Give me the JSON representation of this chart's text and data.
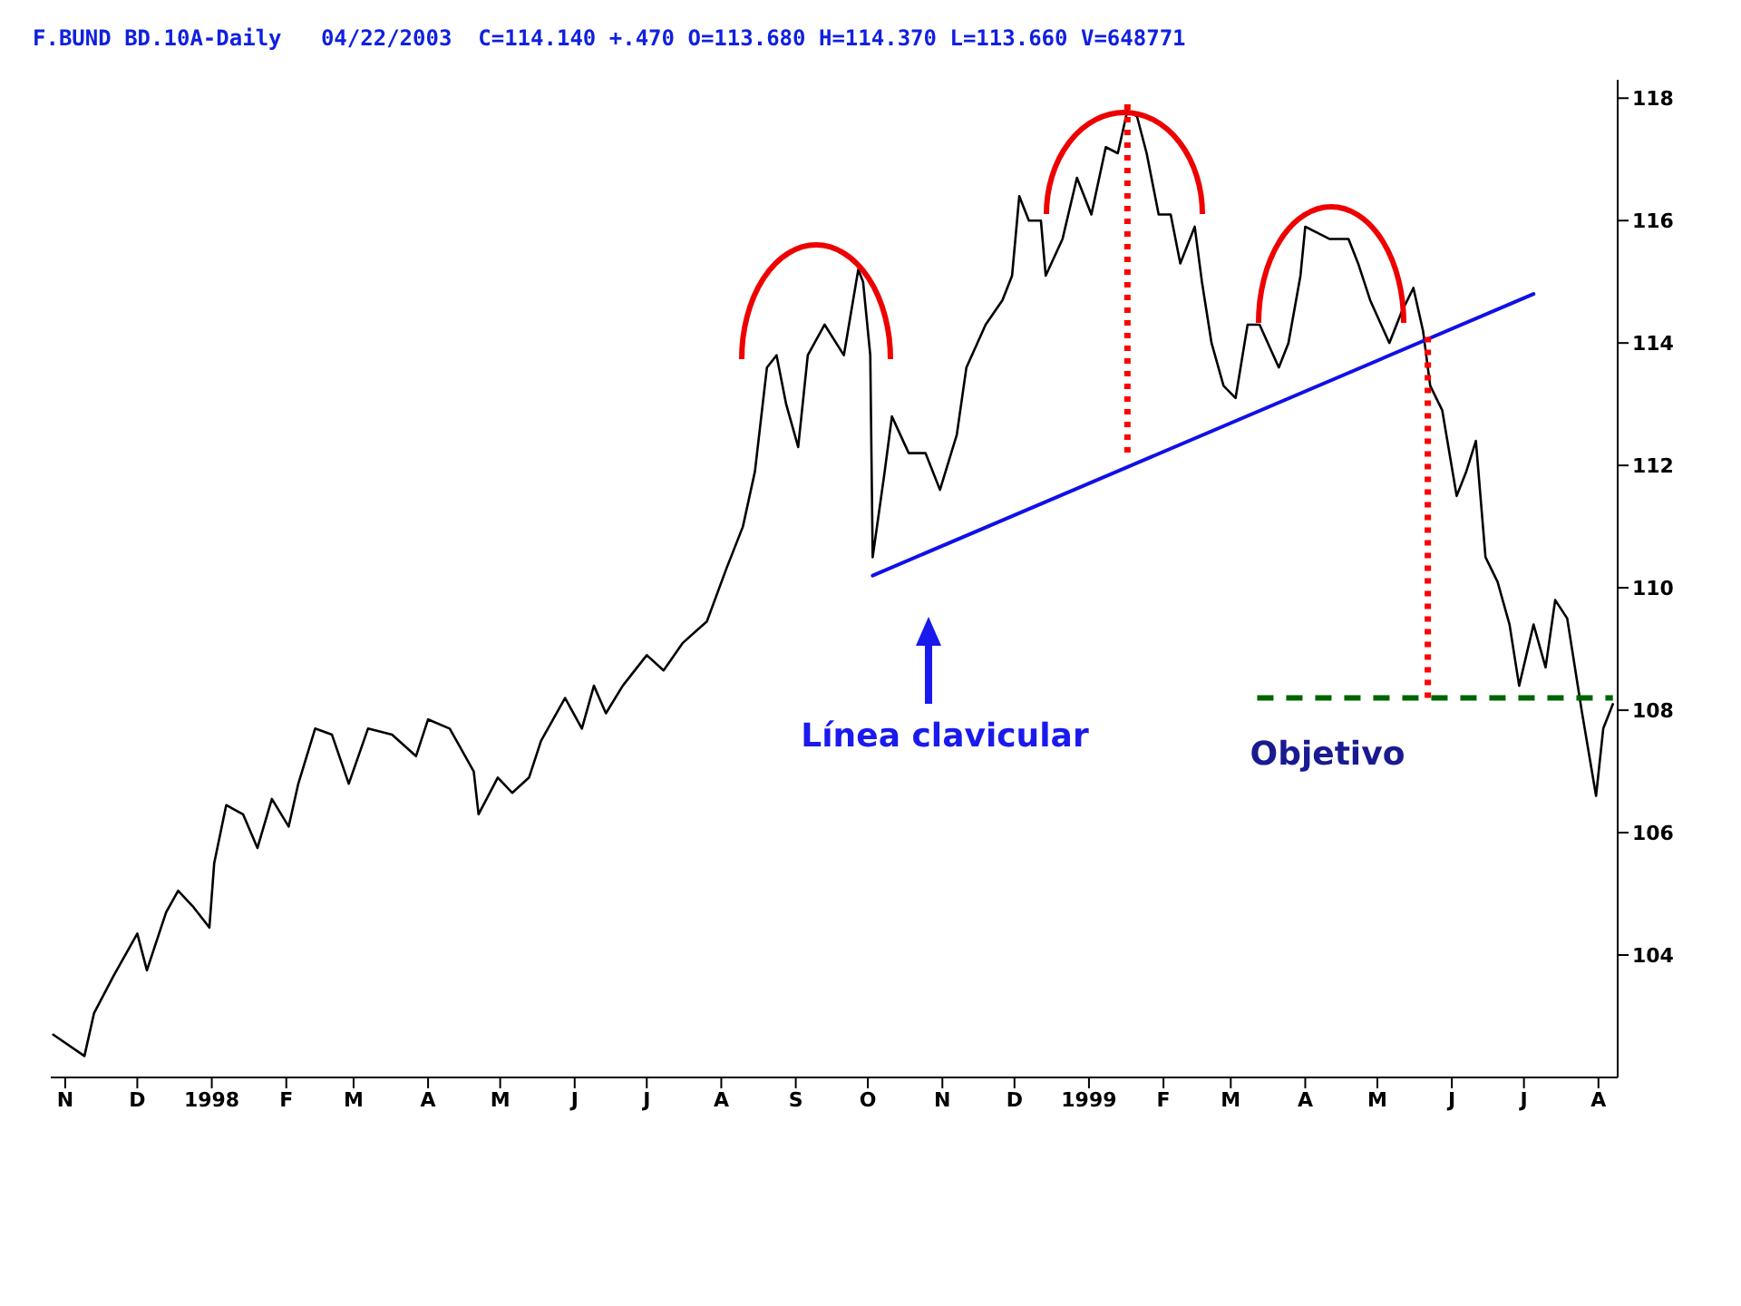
{
  "chart_data": {
    "type": "line",
    "title": "F.BUND BD.10A-Daily   04/22/2003  C=114.140 +.470 O=113.680 H=114.370 L=113.660 V=648771",
    "grid": false,
    "marker": "none",
    "xlim": [
      "1997-10-26",
      "1999-08-09"
    ],
    "xticks": [
      {
        "value": "1997-11-01",
        "label": "N"
      },
      {
        "value": "1997-12-01",
        "label": "D"
      },
      {
        "value": "1998-01-01",
        "label": "1998"
      },
      {
        "value": "1998-02-01",
        "label": "F"
      },
      {
        "value": "1998-03-01",
        "label": "M"
      },
      {
        "value": "1998-04-01",
        "label": "A"
      },
      {
        "value": "1998-05-01",
        "label": "M"
      },
      {
        "value": "1998-06-01",
        "label": "J"
      },
      {
        "value": "1998-07-01",
        "label": "J"
      },
      {
        "value": "1998-08-01",
        "label": "A"
      },
      {
        "value": "1998-09-01",
        "label": "S"
      },
      {
        "value": "1998-10-01",
        "label": "O"
      },
      {
        "value": "1998-11-01",
        "label": "N"
      },
      {
        "value": "1998-12-01",
        "label": "D"
      },
      {
        "value": "1999-01-01",
        "label": "1999"
      },
      {
        "value": "1999-02-01",
        "label": "F"
      },
      {
        "value": "1999-03-01",
        "label": "M"
      },
      {
        "value": "1999-04-01",
        "label": "A"
      },
      {
        "value": "1999-05-01",
        "label": "M"
      },
      {
        "value": "1999-06-01",
        "label": "J"
      },
      {
        "value": "1999-07-01",
        "label": "J"
      },
      {
        "value": "1999-08-01",
        "label": "A"
      }
    ],
    "ylim": [
      102,
      118.3
    ],
    "yticks": [
      104,
      106,
      108,
      110,
      112,
      114,
      116,
      118
    ],
    "annotations": [
      "Línea clavicular",
      "Objetivo"
    ],
    "series": [
      {
        "color": "#000000",
        "line_style": "solid",
        "x": [
          "1997-10-27",
          "1997-11-09",
          "1997-11-13",
          "1997-11-21",
          "1997-12-01",
          "1997-12-05",
          "1997-12-13",
          "1997-12-18",
          "1997-12-24",
          "1997-12-31",
          "1998-01-02",
          "1998-01-07",
          "1998-01-14",
          "1998-01-20",
          "1998-01-26",
          "1998-02-02",
          "1998-02-06",
          "1998-02-13",
          "1998-02-20",
          "1998-02-27",
          "1998-03-07",
          "1998-03-17",
          "1998-03-27",
          "1998-04-01",
          "1998-04-10",
          "1998-04-20",
          "1998-04-22",
          "1998-04-30",
          "1998-05-06",
          "1998-05-13",
          "1998-05-18",
          "1998-05-28",
          "1998-06-04",
          "1998-06-09",
          "1998-06-14",
          "1998-06-21",
          "1998-07-01",
          "1998-07-08",
          "1998-07-16",
          "1998-07-26",
          "1998-08-03",
          "1998-08-10",
          "1998-08-15",
          "1998-08-20",
          "1998-08-24",
          "1998-08-28",
          "1998-09-02",
          "1998-09-06",
          "1998-09-13",
          "1998-09-21",
          "1998-09-27",
          "1998-09-29",
          "1998-10-02",
          "1998-10-03",
          "1998-10-08",
          "1998-10-11",
          "1998-10-18",
          "1998-10-25",
          "1998-10-31",
          "1998-11-07",
          "1998-11-11",
          "1998-11-19",
          "1998-11-26",
          "1998-11-30",
          "1998-12-03",
          "1998-12-07",
          "1998-12-12",
          "1998-12-14",
          "1998-12-21",
          "1998-12-27",
          "1999-01-02",
          "1999-01-08",
          "1999-01-13",
          "1999-01-17",
          "1999-01-21",
          "1999-01-25",
          "1999-01-30",
          "1999-02-04",
          "1999-02-08",
          "1999-02-14",
          "1999-02-17",
          "1999-02-21",
          "1999-02-26",
          "1999-03-03",
          "1999-03-08",
          "1999-03-13",
          "1999-03-21",
          "1999-03-25",
          "1999-03-30",
          "1999-04-01",
          "1999-04-06",
          "1999-04-11",
          "1999-04-19",
          "1999-04-23",
          "1999-04-28",
          "1999-05-06",
          "1999-05-11",
          "1999-05-16",
          "1999-05-20",
          "1999-05-23",
          "1999-05-28",
          "1999-06-03",
          "1999-06-07",
          "1999-06-11",
          "1999-06-15",
          "1999-06-20",
          "1999-06-25",
          "1999-06-29",
          "1999-07-05",
          "1999-07-10",
          "1999-07-14",
          "1999-07-19",
          "1999-07-25",
          "1999-07-31",
          "1999-08-03",
          "1999-08-07"
        ],
        "values": [
          102.7,
          102.35,
          103.05,
          103.65,
          104.35,
          103.75,
          104.7,
          105.05,
          104.8,
          104.45,
          105.5,
          106.45,
          106.3,
          105.75,
          106.55,
          106.1,
          106.8,
          107.7,
          107.6,
          106.8,
          107.7,
          107.6,
          107.25,
          107.85,
          107.7,
          107.0,
          106.3,
          106.9,
          106.65,
          106.9,
          107.5,
          108.2,
          107.7,
          108.4,
          107.95,
          108.4,
          108.9,
          108.65,
          109.1,
          109.45,
          110.3,
          111.0,
          111.9,
          113.6,
          113.8,
          113.0,
          112.3,
          113.8,
          114.3,
          113.8,
          115.2,
          115.0,
          113.8,
          110.5,
          111.9,
          112.8,
          112.2,
          112.2,
          111.6,
          112.5,
          113.6,
          114.3,
          114.7,
          115.1,
          116.4,
          116.0,
          116.0,
          115.1,
          115.7,
          116.7,
          116.1,
          117.2,
          117.1,
          117.8,
          117.7,
          117.1,
          116.1,
          116.1,
          115.3,
          115.9,
          115.0,
          114.0,
          113.3,
          113.1,
          114.3,
          114.3,
          113.6,
          114.0,
          115.1,
          115.9,
          115.8,
          115.7,
          115.7,
          115.3,
          114.7,
          114.0,
          114.5,
          114.9,
          114.2,
          113.3,
          112.9,
          111.5,
          111.9,
          112.4,
          110.5,
          110.1,
          109.4,
          108.4,
          109.4,
          108.7,
          109.8,
          109.5,
          108.0,
          106.6,
          107.7,
          108.1
        ]
      },
      {
        "color": "#1010e8",
        "line_style": "solid",
        "x": [
          "1998-10-03",
          "1999-07-05"
        ],
        "values": [
          110.2,
          114.8
        ]
      },
      {
        "color": "#ff0000",
        "line_style": "dotted",
        "x": [
          "1999-01-17",
          "1999-01-17"
        ],
        "values": [
          117.9,
          112.2
        ]
      },
      {
        "color": "#ff0000",
        "line_style": "dotted",
        "x": [
          "1999-05-22",
          "1999-05-22"
        ],
        "values": [
          114.1,
          108.2
        ]
      },
      {
        "color": "#006400",
        "line_style": "dashed",
        "x": [
          "1999-03-12",
          "1999-08-07"
        ],
        "values": [
          108.2,
          108.2
        ]
      }
    ]
  }
}
